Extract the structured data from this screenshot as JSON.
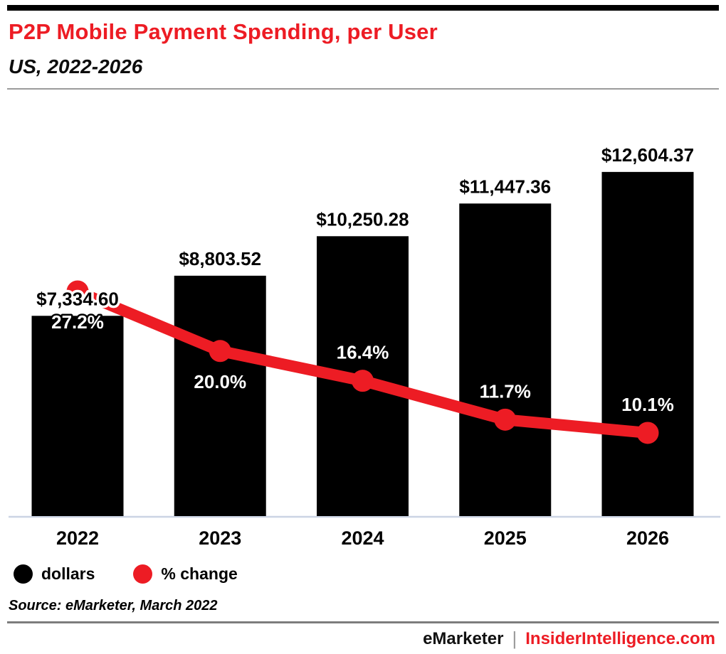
{
  "meta": {
    "title": "P2P Mobile Payment Spending, per User",
    "subtitle": "US, 2022-2026",
    "source": "Source: eMarketer, March 2022",
    "footer_left": "eMarketer",
    "footer_separator": "|",
    "footer_right": "InsiderIntelligence.com"
  },
  "legend": {
    "items": [
      {
        "label": "dollars",
        "color": "#000000"
      },
      {
        "label": "% change",
        "color": "#ed1c24"
      }
    ]
  },
  "colors": {
    "accent_red": "#ed1c24",
    "bar_black": "#000000",
    "axis_line": "#ccd4e4",
    "divider_gray": "#9b9b9b"
  },
  "chart_data": {
    "type": "bar",
    "subtype": "combo-bar-line",
    "title": "P2P Mobile Payment Spending, per User",
    "subtitle": "US, 2022-2026",
    "categories": [
      "2022",
      "2023",
      "2024",
      "2025",
      "2026"
    ],
    "series": [
      {
        "name": "dollars",
        "type": "bar",
        "color": "#000000",
        "values": [
          7334.6,
          8803.52,
          10250.28,
          11447.36,
          12604.37
        ],
        "labels": [
          "$7,334.60",
          "$8,803.52",
          "$10,250.28",
          "$11,447.36",
          "$12,604.37"
        ]
      },
      {
        "name": "% change",
        "type": "line",
        "color": "#ed1c24",
        "values": [
          27.2,
          20.0,
          16.4,
          11.7,
          10.1
        ],
        "labels": [
          "27.2%",
          "20.0%",
          "16.4%",
          "11.7%",
          "10.1%"
        ],
        "label_side": [
          "below",
          "below",
          "above",
          "above",
          "above"
        ]
      }
    ],
    "xlabel": "",
    "ylabel": "",
    "y_axis_visible": false,
    "grid": false,
    "data_labels": true,
    "legend_position": "bottom-left"
  }
}
